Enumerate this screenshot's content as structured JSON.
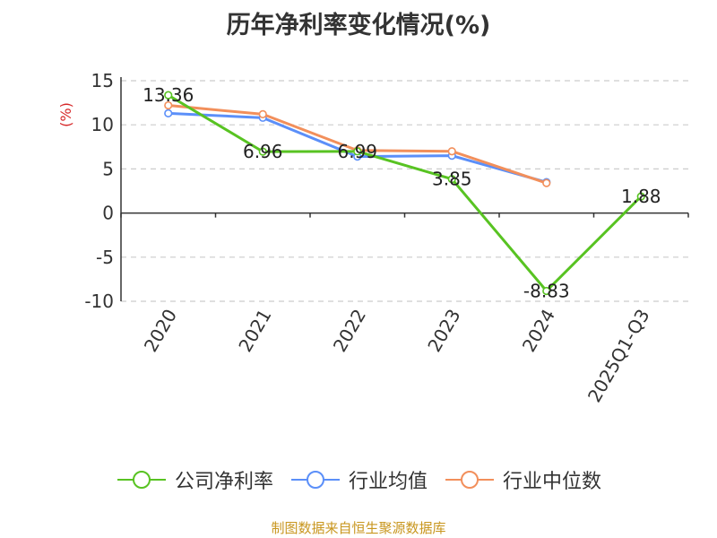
{
  "chart_data": {
    "type": "line",
    "title": "历年净利率变化情况(%)",
    "ylabel": "(%)",
    "categories": [
      "2020",
      "2021",
      "2022",
      "2023",
      "2024",
      "2025Q1-Q3"
    ],
    "ylim": [
      -10,
      15
    ],
    "yticks": [
      15,
      10,
      5,
      0,
      -5,
      -10
    ],
    "grid": true,
    "legend_position": "bottom",
    "series": [
      {
        "name": "公司净利率",
        "color": "#58c322",
        "values": [
          13.36,
          6.96,
          6.99,
          3.85,
          -8.83,
          1.88
        ],
        "labels": [
          "13.36",
          "6.96",
          "6.99",
          "3.85",
          "-8.83",
          "1.88"
        ]
      },
      {
        "name": "行业均值",
        "color": "#5b8ff9",
        "values": [
          11.3,
          10.8,
          6.4,
          6.5,
          3.5,
          null
        ]
      },
      {
        "name": "行业中位数",
        "color": "#f28f5b",
        "values": [
          12.2,
          11.2,
          7.1,
          7.0,
          3.4,
          null
        ]
      }
    ],
    "source": "制图数据来自恒生聚源数据库"
  }
}
